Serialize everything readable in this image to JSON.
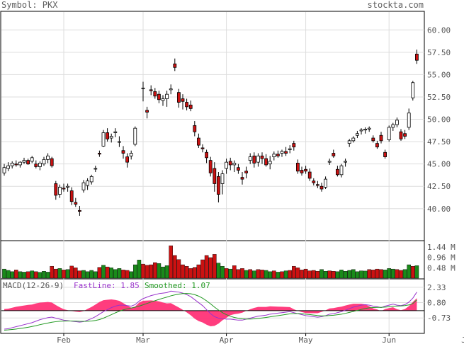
{
  "header": {
    "symbol_label": "Symbol: PKX",
    "site": "stockta.com"
  },
  "colors": {
    "up_body": "#ffffff",
    "down_body": "#cc1111",
    "up_volume": "#1a8a1a",
    "down_volume": "#cc1111",
    "grid": "#dddddd",
    "macd_hist": "#ff3377",
    "fast_line": "#9933cc",
    "smoothed_line": "#229922",
    "text": "#555555"
  },
  "chart_data": [
    {
      "type": "candlestick",
      "title": "",
      "y_ticks": [
        "60.00",
        "57.50",
        "55.00",
        "52.50",
        "50.00",
        "47.50",
        "45.00",
        "42.50",
        "40.00"
      ],
      "y_range": [
        36.5,
        62.0
      ],
      "x_ticks": [
        "Feb",
        "Mar",
        "Apr",
        "May",
        "Jun",
        "Jul"
      ],
      "x_tick_index": [
        15,
        35,
        56,
        76,
        97,
        117
      ],
      "grid": true,
      "candles": [
        [
          44.0,
          45.0,
          43.7,
          44.6
        ],
        [
          44.5,
          45.2,
          44.2,
          44.8
        ],
        [
          44.8,
          45.3,
          44.5,
          45.1
        ],
        [
          45.0,
          45.4,
          44.7,
          44.9
        ],
        [
          44.9,
          45.3,
          44.6,
          45.2
        ],
        [
          45.2,
          45.7,
          45.0,
          45.4
        ],
        [
          45.4,
          45.6,
          44.9,
          45.0
        ],
        [
          45.3,
          45.9,
          45.1,
          45.7
        ],
        [
          45.0,
          45.4,
          44.5,
          44.7
        ],
        [
          44.7,
          45.3,
          44.3,
          45.1
        ],
        [
          45.0,
          45.8,
          44.8,
          45.5
        ],
        [
          45.5,
          46.2,
          45.1,
          45.9
        ],
        [
          45.6,
          45.8,
          44.6,
          44.8
        ],
        [
          42.8,
          43.1,
          41.0,
          41.5
        ],
        [
          41.6,
          42.7,
          41.2,
          42.4
        ],
        [
          42.3,
          42.8,
          41.9,
          42.2
        ],
        [
          42.4,
          42.8,
          41.9,
          42.5
        ],
        [
          42.0,
          42.4,
          40.4,
          40.8
        ],
        [
          40.7,
          41.2,
          40.2,
          40.5
        ],
        [
          39.8,
          40.3,
          39.2,
          39.7
        ],
        [
          42.1,
          43.2,
          41.8,
          42.9
        ],
        [
          42.6,
          43.4,
          42.1,
          43.1
        ],
        [
          43.0,
          43.8,
          42.7,
          43.6
        ],
        [
          44.5,
          44.8,
          44.1,
          44.5
        ],
        [
          46.2,
          46.5,
          45.8,
          46.1
        ],
        [
          47.0,
          48.8,
          46.9,
          48.5
        ],
        [
          48.5,
          49.0,
          47.5,
          47.8
        ],
        [
          47.9,
          48.4,
          47.4,
          48.1
        ],
        [
          48.5,
          49.0,
          48.0,
          48.6
        ],
        [
          47.5,
          48.1,
          46.9,
          47.5
        ],
        [
          46.5,
          47.0,
          45.6,
          46.2
        ],
        [
          45.8,
          46.2,
          44.6,
          45.2
        ],
        [
          45.9,
          46.5,
          45.5,
          46.2
        ],
        [
          47.2,
          49.2,
          47.0,
          49.0
        ],
        [
          53.5,
          54.2,
          52.0,
          53.5
        ],
        [
          51.0,
          51.4,
          50.1,
          50.8
        ],
        [
          53.3,
          53.8,
          52.7,
          53.2
        ],
        [
          53.1,
          53.5,
          52.3,
          52.6
        ],
        [
          52.8,
          53.2,
          51.8,
          52.2
        ],
        [
          52.1,
          52.7,
          51.5,
          52.3
        ],
        [
          52.3,
          53.2,
          51.4,
          52.8
        ],
        [
          53.3,
          53.9,
          52.8,
          53.4
        ],
        [
          56.2,
          56.8,
          55.4,
          55.8
        ],
        [
          53.0,
          53.4,
          51.3,
          51.9
        ],
        [
          52.3,
          52.8,
          51.1,
          52.0
        ],
        [
          51.9,
          52.3,
          51.0,
          51.4
        ],
        [
          51.6,
          52.1,
          50.9,
          51.2
        ],
        [
          49.3,
          49.8,
          48.1,
          48.6
        ],
        [
          47.9,
          48.4,
          46.8,
          47.1
        ],
        [
          46.8,
          47.2,
          46.3,
          46.7
        ],
        [
          46.3,
          46.6,
          45.1,
          45.7
        ],
        [
          45.4,
          45.8,
          43.6,
          44.0
        ],
        [
          44.5,
          45.2,
          41.9,
          42.8
        ],
        [
          43.6,
          44.1,
          40.7,
          41.6
        ],
        [
          42.8,
          44.3,
          41.6,
          43.9
        ],
        [
          44.5,
          45.6,
          43.9,
          45.2
        ],
        [
          45.3,
          45.7,
          44.3,
          44.9
        ],
        [
          44.9,
          45.4,
          44.1,
          45.1
        ],
        [
          44.6,
          45.0,
          43.9,
          44.3
        ],
        [
          43.5,
          44.1,
          42.7,
          43.3
        ],
        [
          44.2,
          44.7,
          43.4,
          44.0
        ],
        [
          45.4,
          46.2,
          45.0,
          45.8
        ],
        [
          45.9,
          46.3,
          44.6,
          45.1
        ],
        [
          45.2,
          46.2,
          44.7,
          45.9
        ],
        [
          45.9,
          46.3,
          45.0,
          45.6
        ],
        [
          45.6,
          46.1,
          44.7,
          44.9
        ],
        [
          45.0,
          45.9,
          44.4,
          45.3
        ],
        [
          45.8,
          46.4,
          45.4,
          46.1
        ],
        [
          46.1,
          46.5,
          45.7,
          45.9
        ],
        [
          46.2,
          46.6,
          45.8,
          46.4
        ],
        [
          46.4,
          46.9,
          45.9,
          46.2
        ],
        [
          46.6,
          47.1,
          46.2,
          46.7
        ],
        [
          47.3,
          47.6,
          46.5,
          46.9
        ],
        [
          45.1,
          45.5,
          43.9,
          44.2
        ],
        [
          44.3,
          44.7,
          43.7,
          44.0
        ],
        [
          44.4,
          44.8,
          43.9,
          44.2
        ],
        [
          44.1,
          44.5,
          43.1,
          43.4
        ],
        [
          43.1,
          43.4,
          42.6,
          42.9
        ],
        [
          42.7,
          43.1,
          42.3,
          42.6
        ],
        [
          42.5,
          42.9,
          41.9,
          42.2
        ],
        [
          42.4,
          43.6,
          42.2,
          43.3
        ],
        [
          45.2,
          45.6,
          44.9,
          45.3
        ],
        [
          46.2,
          46.6,
          45.7,
          45.9
        ],
        [
          44.4,
          44.8,
          43.6,
          43.8
        ],
        [
          43.8,
          45.0,
          43.5,
          44.8
        ],
        [
          45.2,
          45.6,
          44.7,
          45.3
        ],
        [
          47.3,
          47.8,
          46.9,
          47.6
        ],
        [
          47.6,
          48.1,
          47.4,
          47.9
        ],
        [
          48.2,
          48.7,
          47.9,
          48.4
        ],
        [
          48.7,
          49.0,
          48.3,
          48.8
        ],
        [
          48.8,
          49.1,
          48.4,
          48.9
        ],
        [
          48.9,
          49.2,
          48.6,
          49.0
        ],
        [
          47.9,
          48.2,
          47.4,
          47.6
        ],
        [
          47.3,
          47.6,
          46.7,
          46.9
        ],
        [
          48.2,
          48.6,
          47.3,
          47.6
        ],
        [
          46.3,
          46.6,
          45.6,
          45.8
        ],
        [
          47.7,
          49.3,
          47.5,
          49.1
        ],
        [
          49.1,
          49.6,
          48.7,
          49.4
        ],
        [
          49.4,
          50.2,
          49.1,
          49.9
        ],
        [
          48.6,
          48.9,
          47.6,
          47.8
        ],
        [
          48.4,
          48.8,
          47.8,
          48.1
        ],
        [
          49.1,
          51.2,
          48.8,
          50.7
        ],
        [
          52.4,
          54.3,
          52.1,
          54.1
        ],
        [
          57.3,
          57.8,
          56.2,
          56.6
        ]
      ],
      "candle_index": [
        0,
        1,
        2,
        3,
        4,
        5,
        6,
        7,
        8,
        9,
        10,
        11,
        12,
        13,
        14,
        15,
        16,
        17,
        18,
        19,
        20,
        21,
        22,
        23,
        24,
        25,
        26,
        27,
        28,
        29,
        30,
        31,
        32,
        33,
        35,
        36,
        37,
        38,
        39,
        40,
        41,
        42,
        43,
        44,
        45,
        46,
        47,
        48,
        49,
        50,
        51,
        52,
        53,
        54,
        55,
        56,
        57,
        58,
        59,
        60,
        61,
        62,
        63,
        64,
        65,
        66,
        67,
        68,
        69,
        70,
        71,
        72,
        73,
        74,
        75,
        76,
        77,
        78,
        79,
        80,
        81,
        82,
        83,
        84,
        85,
        86,
        87,
        88,
        89,
        90,
        91,
        92,
        93,
        94,
        95,
        96,
        97,
        98,
        99,
        100,
        101,
        102,
        103,
        104,
        105
      ]
    },
    {
      "type": "bar",
      "title": "",
      "y_ticks": [
        "1.44 M",
        "0.96 M",
        "0.48 M"
      ],
      "y_range": [
        0,
        1.7
      ],
      "volumes": [
        0.42,
        0.36,
        0.3,
        0.38,
        0.3,
        0.28,
        0.3,
        0.34,
        0.3,
        0.27,
        0.32,
        0.28,
        0.55,
        0.42,
        0.45,
        0.38,
        0.4,
        0.56,
        0.48,
        0.34,
        0.36,
        0.3,
        0.36,
        0.3,
        0.5,
        0.6,
        0.52,
        0.48,
        0.4,
        0.45,
        0.38,
        0.36,
        0.3,
        0.62,
        0.84,
        0.65,
        0.6,
        0.62,
        0.72,
        0.68,
        0.52,
        0.58,
        1.5,
        1.05,
        0.86,
        0.62,
        0.55,
        0.45,
        0.5,
        0.62,
        0.85,
        1.05,
        0.95,
        1.1,
        0.7,
        0.55,
        0.45,
        0.42,
        0.58,
        0.4,
        0.45,
        0.36,
        0.4,
        0.34,
        0.4,
        0.38,
        0.36,
        0.3,
        0.34,
        0.28,
        0.3,
        0.34,
        0.36,
        0.55,
        0.48,
        0.38,
        0.42,
        0.34,
        0.36,
        0.32,
        0.4,
        0.32,
        0.34,
        0.32,
        0.3,
        0.38,
        0.32,
        0.36,
        0.4,
        0.3,
        0.34,
        0.33,
        0.4,
        0.38,
        0.42,
        0.4,
        0.38,
        0.45,
        0.42,
        0.4,
        0.36,
        0.4,
        0.62,
        0.55,
        0.58
      ]
    },
    {
      "type": "line",
      "title": "MACD(12-26-9)",
      "y_ticks": [
        "2.33",
        "0.80",
        "-0.73"
      ],
      "y_range": [
        -2.2,
        3.1
      ],
      "series": [
        {
          "name": "FastLine",
          "value_label": "1.85",
          "values": [
            -1.85,
            -1.8,
            -1.7,
            -1.6,
            -1.5,
            -1.4,
            -1.3,
            -1.2,
            -1.05,
            -0.9,
            -0.8,
            -0.7,
            -0.65,
            -0.75,
            -0.85,
            -0.95,
            -1.0,
            -1.05,
            -1.1,
            -1.15,
            -1.1,
            -0.95,
            -0.8,
            -0.6,
            -0.35,
            -0.1,
            0.1,
            0.3,
            0.45,
            0.55,
            0.55,
            0.5,
            0.45,
            0.6,
            0.95,
            1.2,
            1.35,
            1.5,
            1.6,
            1.7,
            1.75,
            1.8,
            1.95,
            1.9,
            1.85,
            1.75,
            1.6,
            1.4,
            1.1,
            0.8,
            0.5,
            0.1,
            -0.3,
            -0.6,
            -0.75,
            -0.8,
            -0.85,
            -0.85,
            -0.9,
            -0.95,
            -0.95,
            -0.85,
            -0.75,
            -0.65,
            -0.55,
            -0.5,
            -0.45,
            -0.35,
            -0.3,
            -0.25,
            -0.2,
            -0.15,
            -0.1,
            -0.2,
            -0.3,
            -0.4,
            -0.5,
            -0.55,
            -0.6,
            -0.65,
            -0.6,
            -0.5,
            -0.35,
            -0.3,
            -0.2,
            -0.1,
            0.05,
            0.2,
            0.35,
            0.45,
            0.55,
            0.6,
            0.55,
            0.45,
            0.4,
            0.3,
            0.45,
            0.55,
            0.65,
            0.55,
            0.5,
            0.6,
            0.85,
            1.25,
            1.85
          ]
        },
        {
          "name": "Smoothed",
          "value_label": "1.07",
          "values": [
            -1.95,
            -1.92,
            -1.88,
            -1.84,
            -1.78,
            -1.72,
            -1.66,
            -1.58,
            -1.5,
            -1.4,
            -1.32,
            -1.24,
            -1.16,
            -1.1,
            -1.06,
            -1.04,
            -1.03,
            -1.03,
            -1.04,
            -1.06,
            -1.07,
            -1.06,
            -1.03,
            -0.98,
            -0.89,
            -0.75,
            -0.58,
            -0.4,
            -0.22,
            -0.06,
            0.08,
            0.18,
            0.26,
            0.34,
            0.45,
            0.58,
            0.72,
            0.86,
            0.99,
            1.12,
            1.24,
            1.35,
            1.48,
            1.57,
            1.65,
            1.7,
            1.71,
            1.69,
            1.6,
            1.45,
            1.24,
            0.98,
            0.68,
            0.35,
            0.06,
            -0.2,
            -0.4,
            -0.56,
            -0.68,
            -0.76,
            -0.82,
            -0.84,
            -0.84,
            -0.82,
            -0.78,
            -0.73,
            -0.68,
            -0.62,
            -0.56,
            -0.5,
            -0.44,
            -0.38,
            -0.32,
            -0.29,
            -0.29,
            -0.31,
            -0.35,
            -0.39,
            -0.44,
            -0.49,
            -0.52,
            -0.52,
            -0.49,
            -0.46,
            -0.41,
            -0.35,
            -0.27,
            -0.18,
            -0.08,
            0.02,
            0.12,
            0.21,
            0.28,
            0.31,
            0.33,
            0.33,
            0.35,
            0.39,
            0.44,
            0.46,
            0.47,
            0.5,
            0.57,
            0.71,
            1.07
          ]
        }
      ]
    }
  ],
  "x_axis": {
    "labels": [
      "Feb",
      "Mar",
      "Apr",
      "May",
      "Jun",
      "Jul"
    ]
  }
}
